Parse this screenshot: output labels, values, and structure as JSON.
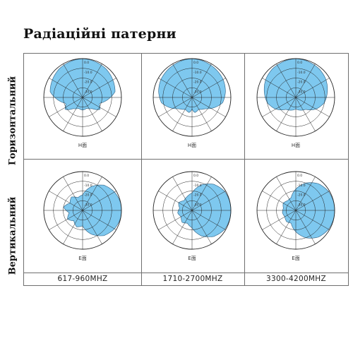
{
  "title": "Радіаційні патерни",
  "rows": [
    {
      "label": "Горизонтальний",
      "plane": "H面"
    },
    {
      "label": "Вертикальний",
      "plane": "E面"
    }
  ],
  "frequencies": [
    "617-960MHZ",
    "1710-2700MHZ",
    "3300-4200MHZ"
  ],
  "ring_labels": [
    "0.0",
    "-10.0",
    "-20.0",
    "-30.0"
  ],
  "colors": {
    "pattern_fill": "#7ec8ef",
    "pattern_stroke": "#2b5e82",
    "grid": "#6f6f6f"
  },
  "chart_data": [
    {
      "type": "polar",
      "plane": "H面",
      "band": "617-960MHZ",
      "orientation": "horizontal",
      "pattern": [
        [
          0,
          0
        ],
        [
          20,
          -1
        ],
        [
          40,
          -2
        ],
        [
          60,
          -4
        ],
        [
          80,
          -6
        ],
        [
          95,
          -14
        ],
        [
          110,
          -22
        ],
        [
          125,
          -18
        ],
        [
          140,
          -25
        ],
        [
          160,
          -28
        ],
        [
          180,
          -27
        ],
        [
          200,
          -28
        ],
        [
          220,
          -25
        ],
        [
          235,
          -18
        ],
        [
          250,
          -22
        ],
        [
          265,
          -14
        ],
        [
          280,
          -6
        ],
        [
          300,
          -4
        ],
        [
          320,
          -2
        ],
        [
          340,
          -1
        ]
      ]
    },
    {
      "type": "polar",
      "plane": "H面",
      "band": "1710-2700MHZ",
      "orientation": "horizontal",
      "pattern": [
        [
          0,
          0
        ],
        [
          20,
          -1
        ],
        [
          40,
          -2
        ],
        [
          60,
          -3
        ],
        [
          80,
          -5
        ],
        [
          100,
          -8
        ],
        [
          115,
          -15
        ],
        [
          130,
          -22
        ],
        [
          150,
          -26
        ],
        [
          170,
          -24
        ],
        [
          180,
          -28
        ],
        [
          190,
          -24
        ],
        [
          210,
          -26
        ],
        [
          230,
          -22
        ],
        [
          245,
          -15
        ],
        [
          260,
          -8
        ],
        [
          280,
          -5
        ],
        [
          300,
          -3
        ],
        [
          320,
          -2
        ],
        [
          340,
          -1
        ]
      ]
    },
    {
      "type": "polar",
      "plane": "H面",
      "band": "3300-4200MHZ",
      "orientation": "horizontal",
      "pattern": [
        [
          0,
          0
        ],
        [
          20,
          -1
        ],
        [
          40,
          -2
        ],
        [
          60,
          -4
        ],
        [
          80,
          -7
        ],
        [
          100,
          -10
        ],
        [
          120,
          -16
        ],
        [
          140,
          -24
        ],
        [
          160,
          -26
        ],
        [
          180,
          -28
        ],
        [
          200,
          -26
        ],
        [
          220,
          -24
        ],
        [
          240,
          -16
        ],
        [
          260,
          -10
        ],
        [
          280,
          -7
        ],
        [
          300,
          -4
        ],
        [
          320,
          -2
        ],
        [
          340,
          -1
        ]
      ]
    },
    {
      "type": "polar",
      "plane": "E面",
      "band": "617-960MHZ",
      "orientation": "vertical",
      "pattern": [
        [
          0,
          -24
        ],
        [
          20,
          -14
        ],
        [
          40,
          -6
        ],
        [
          60,
          -2
        ],
        [
          80,
          0
        ],
        [
          90,
          0
        ],
        [
          100,
          0
        ],
        [
          120,
          -2
        ],
        [
          140,
          -6
        ],
        [
          160,
          -14
        ],
        [
          180,
          -24
        ],
        [
          200,
          -22
        ],
        [
          220,
          -26
        ],
        [
          240,
          -22
        ],
        [
          260,
          -26
        ],
        [
          280,
          -20
        ],
        [
          300,
          -25
        ],
        [
          320,
          -22
        ],
        [
          340,
          -26
        ]
      ]
    },
    {
      "type": "polar",
      "plane": "E面",
      "band": "1710-2700MHZ",
      "orientation": "vertical",
      "pattern": [
        [
          0,
          -22
        ],
        [
          20,
          -12
        ],
        [
          40,
          -5
        ],
        [
          60,
          -1
        ],
        [
          80,
          0
        ],
        [
          90,
          0
        ],
        [
          100,
          0
        ],
        [
          120,
          -1
        ],
        [
          140,
          -5
        ],
        [
          160,
          -12
        ],
        [
          180,
          -22
        ],
        [
          200,
          -26
        ],
        [
          220,
          -24
        ],
        [
          240,
          -27
        ],
        [
          260,
          -25
        ],
        [
          280,
          -27
        ],
        [
          300,
          -24
        ],
        [
          320,
          -27
        ],
        [
          340,
          -25
        ]
      ]
    },
    {
      "type": "polar",
      "plane": "E面",
      "band": "3300-4200MHZ",
      "orientation": "vertical",
      "pattern": [
        [
          0,
          -18
        ],
        [
          20,
          -10
        ],
        [
          40,
          -4
        ],
        [
          60,
          -1
        ],
        [
          80,
          0
        ],
        [
          90,
          0
        ],
        [
          100,
          0
        ],
        [
          120,
          -1
        ],
        [
          140,
          -4
        ],
        [
          160,
          -10
        ],
        [
          180,
          -18
        ],
        [
          200,
          -26
        ],
        [
          220,
          -25
        ],
        [
          240,
          -27
        ],
        [
          260,
          -26
        ],
        [
          280,
          -27
        ],
        [
          300,
          -25
        ],
        [
          320,
          -27
        ],
        [
          340,
          -26
        ]
      ]
    }
  ]
}
